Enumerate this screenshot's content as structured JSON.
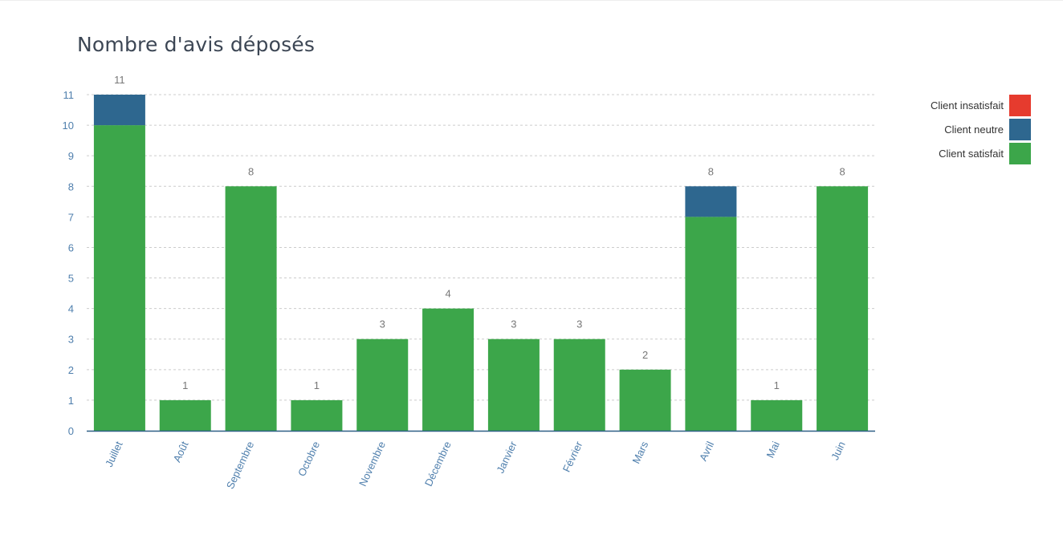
{
  "colors": {
    "satisfait": "#3ca64a",
    "neutre": "#2e678f",
    "insatisfait": "#e63b2e",
    "axis_text": "#4f7fad",
    "grid": "#cccccc"
  },
  "chart_data": {
    "type": "bar",
    "stacked": true,
    "title": "Nombre d'avis déposés",
    "xlabel": "",
    "ylabel": "",
    "ylim": [
      0,
      11
    ],
    "yticks": [
      0,
      1,
      2,
      3,
      4,
      5,
      6,
      7,
      8,
      9,
      10,
      11
    ],
    "grid": true,
    "legend_position": "top-right",
    "categories": [
      "Juillet",
      "Août",
      "Septembre",
      "Octobre",
      "Novembre",
      "Décembre",
      "Janvier",
      "Février",
      "Mars",
      "Avril",
      "Mai",
      "Juin"
    ],
    "series": [
      {
        "name": "Client satisfait",
        "color": "#3ca64a",
        "values": [
          10,
          1,
          8,
          1,
          3,
          4,
          3,
          3,
          2,
          7,
          1,
          8
        ]
      },
      {
        "name": "Client neutre",
        "color": "#2e678f",
        "values": [
          1,
          0,
          0,
          0,
          0,
          0,
          0,
          0,
          0,
          1,
          0,
          0
        ]
      },
      {
        "name": "Client insatisfait",
        "color": "#e63b2e",
        "values": [
          0,
          0,
          0,
          0,
          0,
          0,
          0,
          0,
          0,
          0,
          0,
          0
        ]
      }
    ],
    "totals": [
      11,
      1,
      8,
      1,
      3,
      4,
      3,
      3,
      2,
      8,
      1,
      8
    ],
    "legend": [
      {
        "label": "Client insatisfait",
        "color": "#e63b2e"
      },
      {
        "label": "Client neutre",
        "color": "#2e678f"
      },
      {
        "label": "Client satisfait",
        "color": "#3ca64a"
      }
    ]
  }
}
